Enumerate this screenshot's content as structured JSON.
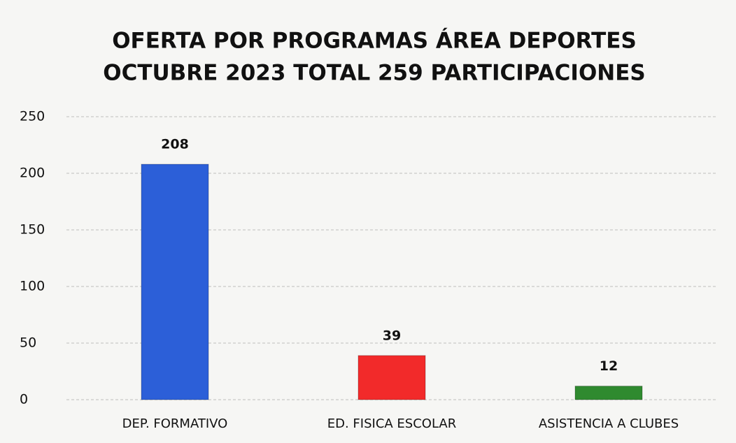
{
  "chart_data": {
    "type": "bar",
    "title": [
      "OFERTA POR PROGRAMAS ÁREA DEPORTES",
      "OCTUBRE 2023 TOTAL 259 PARTICIPACIONES"
    ],
    "categories": [
      "DEP. FORMATIVO",
      "ED. FISICA ESCOLAR",
      "ASISTENCIA A CLUBES"
    ],
    "values": [
      208,
      39,
      12
    ],
    "colors": [
      "#2c5fd8",
      "#f22a2a",
      "#2f8a2f"
    ],
    "ylim": [
      0,
      250
    ],
    "yticks": [
      0,
      50,
      100,
      150,
      200,
      250
    ],
    "grid": true
  }
}
